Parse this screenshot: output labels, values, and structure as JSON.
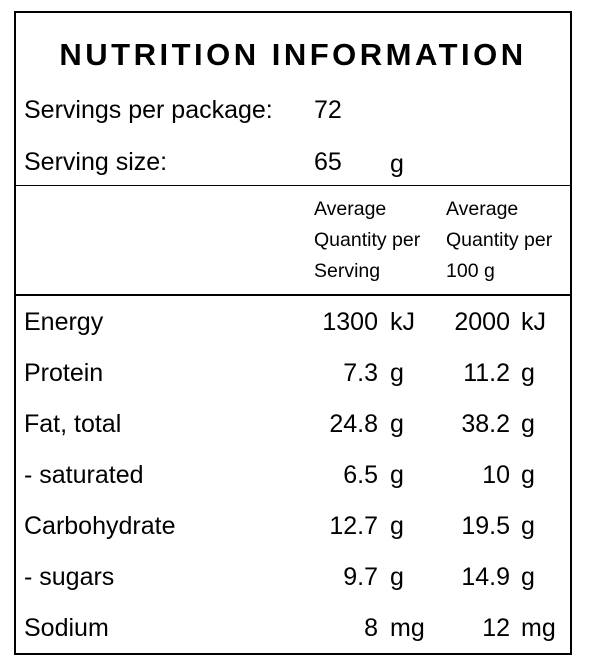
{
  "title": "NUTRITION INFORMATION",
  "servings_per_package": {
    "label": "Servings per package:",
    "value": "72"
  },
  "serving_size": {
    "label": "Serving size:",
    "value": "65",
    "unit": "g"
  },
  "columns": {
    "per_serving": [
      "Average",
      "Quantity per",
      "Serving"
    ],
    "per_100g": [
      "Average",
      "Quantity per",
      "100 g"
    ]
  },
  "nutrients": [
    {
      "name": "Energy",
      "per_serving": "1300",
      "per_serving_unit": "kJ",
      "per_100g": "2000",
      "per_100g_unit": "kJ"
    },
    {
      "name": "Protein",
      "per_serving": "7.3",
      "per_serving_unit": "g",
      "per_100g": "11.2",
      "per_100g_unit": "g"
    },
    {
      "name": "Fat, total",
      "per_serving": "24.8",
      "per_serving_unit": "g",
      "per_100g": "38.2",
      "per_100g_unit": "g"
    },
    {
      "name": "- saturated",
      "per_serving": "6.5",
      "per_serving_unit": "g",
      "per_100g": "10",
      "per_100g_unit": "g"
    },
    {
      "name": "Carbohydrate",
      "per_serving": "12.7",
      "per_serving_unit": "g",
      "per_100g": "19.5",
      "per_100g_unit": "g"
    },
    {
      "name": "- sugars",
      "per_serving": "9.7",
      "per_serving_unit": "g",
      "per_100g": "14.9",
      "per_100g_unit": "g"
    },
    {
      "name": "Sodium",
      "per_serving": "8",
      "per_serving_unit": "mg",
      "per_100g": "12",
      "per_100g_unit": "mg"
    }
  ]
}
